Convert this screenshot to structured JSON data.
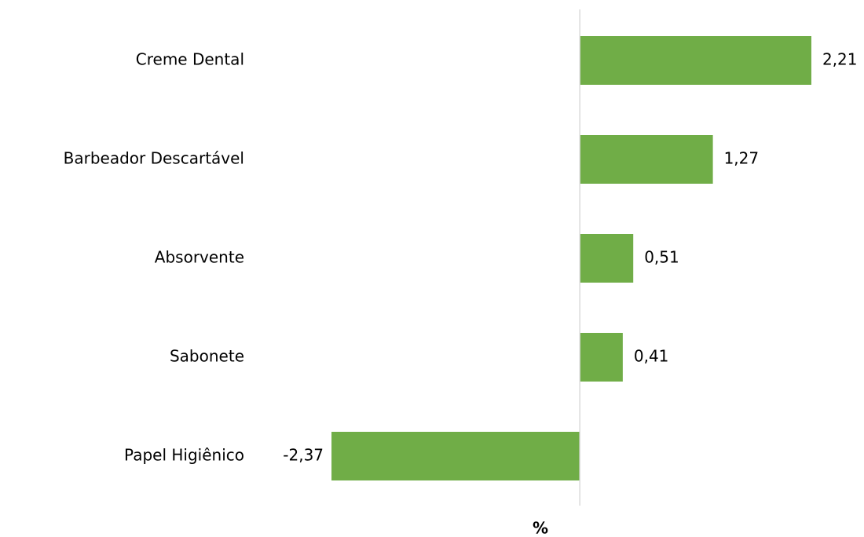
{
  "chart_data": {
    "type": "barh",
    "categories": [
      "Creme Dental",
      "Barbeador Descartável",
      "Absorvente",
      "Sabonete",
      "Papel Higiênico"
    ],
    "values": [
      2.21,
      1.27,
      0.51,
      0.41,
      -2.37
    ],
    "value_labels": [
      "2,21",
      "1,27",
      "0,51",
      "0,41",
      "-2,37"
    ],
    "color": "#70ad47",
    "xlabel": "%",
    "xlim": [
      -3,
      2.6
    ]
  }
}
